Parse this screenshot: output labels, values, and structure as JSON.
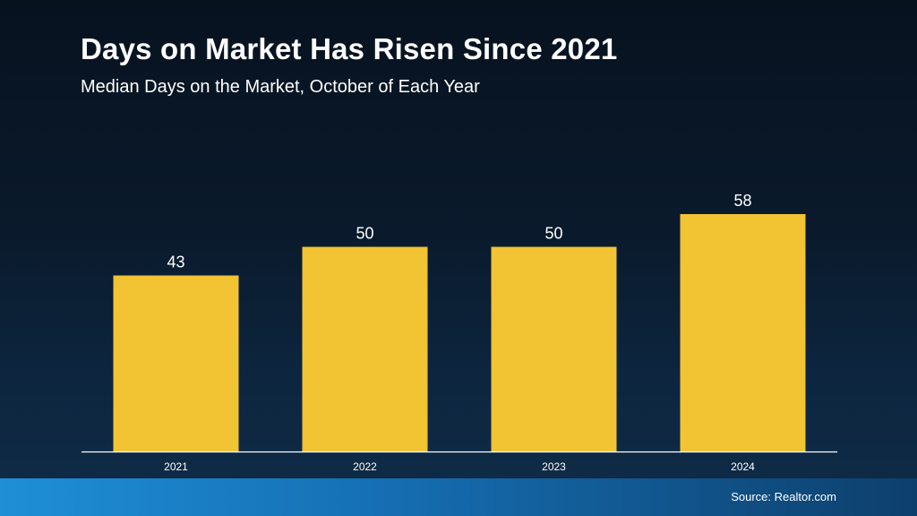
{
  "header": {
    "title": "Days on Market Has Risen Since 2021",
    "subtitle": "Median Days on the Market, October of Each Year"
  },
  "footer": {
    "source": "Source: Realtor.com"
  },
  "colors": {
    "bar": "#f2c332",
    "axis": "#ffffff",
    "text": "#ffffff"
  },
  "chart_data": {
    "type": "bar",
    "title": "Days on Market Has Risen Since 2021",
    "subtitle": "Median Days on the Market, October of Each Year",
    "categories": [
      "2021",
      "2022",
      "2023",
      "2024"
    ],
    "values": [
      43,
      50,
      50,
      58
    ],
    "data_labels": [
      "43",
      "50",
      "50",
      "58"
    ],
    "xlabel": "",
    "ylabel": "",
    "ylim": [
      0,
      72
    ],
    "grid": false,
    "legend": "none"
  }
}
